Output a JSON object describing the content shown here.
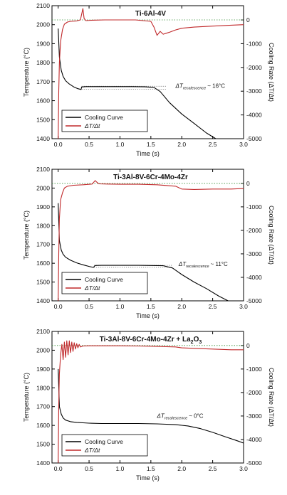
{
  "chart_data": [
    {
      "type": "line",
      "title": "Ti-6Al-4V",
      "xlabel": "Time (s)",
      "ylabel": "Temperature (°C)",
      "y2label": "Cooling Rate (ΔT/Δt)",
      "xlim": [
        -0.1,
        3.0
      ],
      "ylim": [
        1400,
        2100
      ],
      "y2lim": [
        -5000,
        600
      ],
      "x_ticks": [
        "0.0",
        "0.5",
        "1.0",
        "1.5",
        "2.0",
        "2.5",
        "3.0"
      ],
      "y_ticks": [
        "1400",
        "1500",
        "1600",
        "1700",
        "1800",
        "1900",
        "2000",
        "2100"
      ],
      "y2_ticks": [
        "-5000",
        "-4000",
        "-3000",
        "-2000",
        "-1000",
        "0"
      ],
      "legend": {
        "placement": "bottom-left",
        "entries": [
          "Cooling Curve",
          "ΔT/Δt"
        ]
      },
      "annotation": {
        "prefix": "ΔT",
        "sub": "recalescence",
        "suffix": "~ 16°C",
        "x": 1.9,
        "y": 1668
      },
      "recalescence_band": {
        "low": 1660,
        "high": 1676,
        "x_start": 0.38,
        "x_end": 1.75
      },
      "series": [
        {
          "name": "Cooling Curve",
          "axis": "left",
          "color": "#000000",
          "x": [
            0.0,
            0.02,
            0.05,
            0.08,
            0.12,
            0.18,
            0.25,
            0.32,
            0.37,
            0.38,
            0.45,
            0.6,
            0.8,
            1.0,
            1.2,
            1.4,
            1.55,
            1.65,
            1.8,
            2.0,
            2.2,
            2.4,
            2.55
          ],
          "y": [
            1980,
            1830,
            1760,
            1728,
            1705,
            1688,
            1673,
            1663,
            1659,
            1672,
            1674,
            1674,
            1674,
            1674,
            1674,
            1673,
            1670,
            1648,
            1590,
            1530,
            1480,
            1430,
            1400
          ]
        },
        {
          "name": "ΔT/Δt",
          "axis": "right",
          "color": "#c0282a",
          "x": [
            0.0,
            0.01,
            0.02,
            0.04,
            0.07,
            0.1,
            0.15,
            0.2,
            0.3,
            0.36,
            0.4,
            0.42,
            0.45,
            0.55,
            0.75,
            1.0,
            1.25,
            1.5,
            1.55,
            1.6,
            1.65,
            1.7,
            1.75,
            1.8,
            1.9,
            2.0,
            2.2,
            2.5,
            2.8,
            3.0
          ],
          "y": [
            -5000,
            -3000,
            -1800,
            -900,
            -400,
            -180,
            -90,
            -60,
            -40,
            0,
            480,
            60,
            -30,
            -10,
            0,
            0,
            0,
            -60,
            -300,
            -650,
            -480,
            -600,
            -560,
            -520,
            -420,
            -350,
            -300,
            -260,
            -220,
            -200
          ]
        }
      ]
    },
    {
      "type": "line",
      "title": "Ti-3Al-8V-6Cr-4Mo-4Zr",
      "xlabel": "Time (s)",
      "ylabel": "Temperature (°C)",
      "y2label": "Cooling Rate (ΔT/Δt)",
      "xlim": [
        -0.1,
        3.0
      ],
      "ylim": [
        1400,
        2100
      ],
      "y2lim": [
        -5000,
        600
      ],
      "x_ticks": [
        "0.0",
        "0.5",
        "1.0",
        "1.5",
        "2.0",
        "2.5",
        "3.0"
      ],
      "y_ticks": [
        "1400",
        "1500",
        "1600",
        "1700",
        "1800",
        "1900",
        "2000",
        "2100"
      ],
      "y2_ticks": [
        "-5000",
        "-4000",
        "-3000",
        "-2000",
        "-1000",
        "0"
      ],
      "legend": {
        "placement": "bottom-left",
        "entries": [
          "Cooling Curve",
          "ΔT/Δt"
        ]
      },
      "annotation": {
        "prefix": "ΔT",
        "sub": "recalescence",
        "suffix": "~ 11°C",
        "x": 1.95,
        "y": 1585
      },
      "recalescence_band": {
        "low": 1578,
        "high": 1589,
        "x_start": 0.58,
        "x_end": 1.85
      },
      "series": [
        {
          "name": "Cooling Curve",
          "axis": "left",
          "color": "#000000",
          "x": [
            0.0,
            0.02,
            0.05,
            0.08,
            0.12,
            0.2,
            0.3,
            0.4,
            0.5,
            0.57,
            0.6,
            0.7,
            0.9,
            1.1,
            1.3,
            1.5,
            1.7,
            1.85,
            2.0,
            2.2,
            2.4,
            2.6,
            2.75
          ],
          "y": [
            1920,
            1720,
            1670,
            1648,
            1632,
            1616,
            1602,
            1592,
            1583,
            1578,
            1588,
            1589,
            1589,
            1589,
            1589,
            1588,
            1587,
            1575,
            1540,
            1500,
            1465,
            1425,
            1400
          ]
        },
        {
          "name": "ΔT/Δt",
          "axis": "right",
          "color": "#c0282a",
          "x": [
            0.0,
            0.01,
            0.02,
            0.04,
            0.07,
            0.1,
            0.15,
            0.25,
            0.4,
            0.55,
            0.6,
            0.62,
            0.66,
            0.8,
            1.0,
            1.3,
            1.6,
            1.9,
            2.0,
            2.2,
            2.5,
            2.8,
            3.0
          ],
          "y": [
            -5000,
            -3000,
            -1500,
            -700,
            -400,
            -200,
            -120,
            -80,
            -60,
            -30,
            120,
            60,
            -20,
            -30,
            -40,
            -40,
            -60,
            -120,
            -240,
            -260,
            -240,
            -240,
            -220
          ]
        }
      ]
    },
    {
      "type": "line",
      "title": "Ti-3Al-8V-6Cr-4Mo-4Zr + La",
      "title_sub": "2",
      "title_mid": "O",
      "title_sub2": "3",
      "xlabel": "Time (s)",
      "ylabel": "Temperature (°C)",
      "y2label": "Cooling Rate (ΔT/Δt)",
      "xlim": [
        -0.1,
        3.0
      ],
      "ylim": [
        1400,
        2100
      ],
      "y2lim": [
        -5000,
        600
      ],
      "x_ticks": [
        "0.0",
        "0.5",
        "1.0",
        "1.5",
        "2.0",
        "2.5",
        "3.0"
      ],
      "y_ticks": [
        "1400",
        "1500",
        "1600",
        "1700",
        "1800",
        "1900",
        "2000",
        "2100"
      ],
      "y2_ticks": [
        "-5000",
        "-4000",
        "-3000",
        "-2000",
        "-1000",
        "0"
      ],
      "legend": {
        "placement": "bottom-left",
        "entries": [
          "Cooling Curve",
          "ΔT/Δt"
        ]
      },
      "annotation": {
        "prefix": "ΔT",
        "sub": "recalescence",
        "suffix": "~ 0°C",
        "x": 1.6,
        "y": 1640
      },
      "recalescence_band": null,
      "series": [
        {
          "name": "Cooling Curve",
          "axis": "left",
          "color": "#000000",
          "x": [
            0.0,
            0.02,
            0.05,
            0.08,
            0.12,
            0.2,
            0.3,
            0.5,
            0.7,
            1.0,
            1.3,
            1.6,
            1.9,
            2.1,
            2.3,
            2.5,
            2.7,
            2.9,
            3.0
          ],
          "y": [
            1900,
            1700,
            1660,
            1640,
            1628,
            1620,
            1616,
            1612,
            1610,
            1610,
            1610,
            1608,
            1604,
            1597,
            1583,
            1563,
            1540,
            1518,
            1506
          ]
        },
        {
          "name": "ΔT/Δt",
          "axis": "right",
          "color": "#c0282a",
          "x": [
            0.0,
            0.01,
            0.02,
            0.04,
            0.06,
            0.08,
            0.1,
            0.12,
            0.14,
            0.16,
            0.18,
            0.2,
            0.22,
            0.24,
            0.26,
            0.28,
            0.3,
            0.32,
            0.34,
            0.36,
            0.4,
            0.5,
            0.7,
            1.0,
            1.3,
            1.6,
            1.9,
            2.0,
            2.2,
            2.5,
            2.8,
            3.0
          ],
          "y": [
            -5000,
            -2500,
            -1200,
            -400,
            50,
            -600,
            150,
            -500,
            200,
            -400,
            200,
            -300,
            150,
            -250,
            120,
            -150,
            80,
            -100,
            50,
            -60,
            -20,
            -10,
            -10,
            -10,
            -20,
            -40,
            -60,
            -100,
            -120,
            -150,
            -180,
            -180
          ]
        }
      ]
    }
  ]
}
